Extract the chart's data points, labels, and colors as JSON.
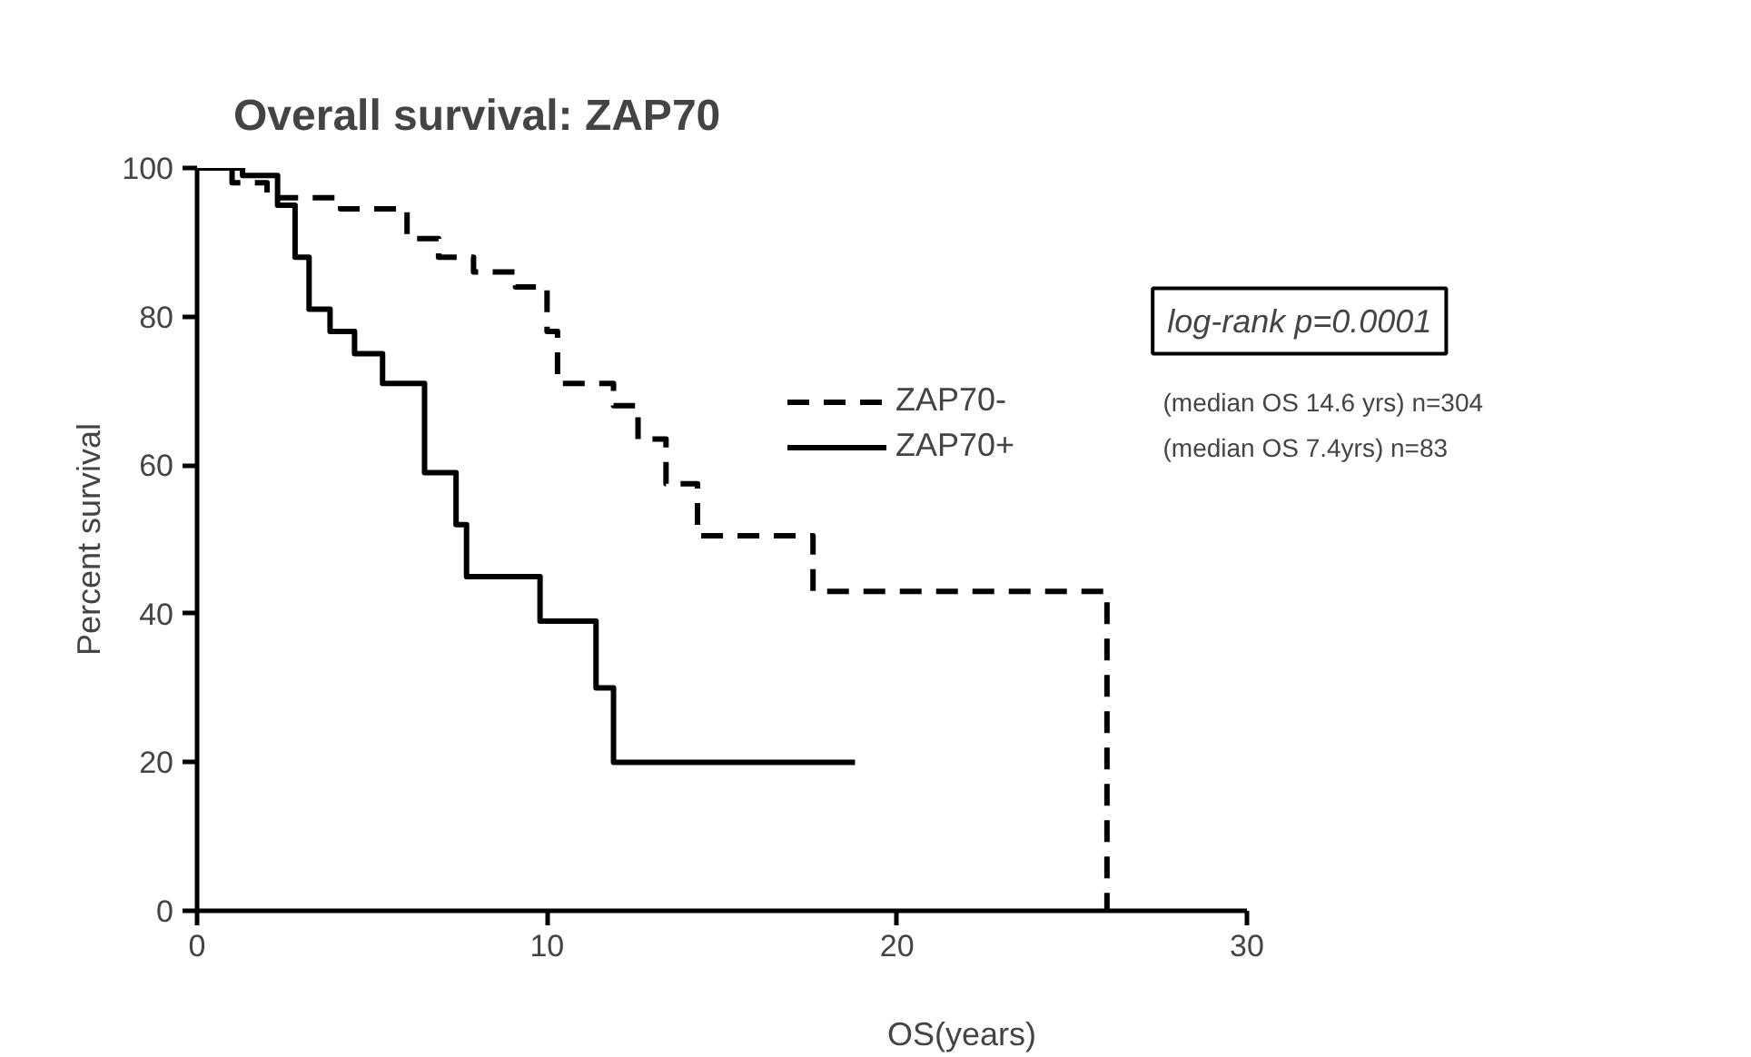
{
  "chart_data": {
    "type": "step",
    "title": "Overall survival: ZAP70",
    "xlabel": "OS(years)",
    "ylabel": "Percent survival",
    "xlim": [
      0,
      30
    ],
    "xticks": [
      0,
      10,
      20,
      30
    ],
    "ylim": [
      0,
      100
    ],
    "yticks": [
      0,
      20,
      40,
      60,
      80,
      100
    ],
    "grid": false,
    "legend": "right",
    "marker": "none",
    "series": [
      {
        "name": "ZAP70-",
        "color": "#000000",
        "line_style": "dashed",
        "x": [
          0,
          1,
          2,
          4.1,
          6,
          6.9,
          7.9,
          9.1,
          10,
          10.3,
          11.9,
          12.6,
          13.4,
          14.3,
          17.6,
          25.9,
          26
        ],
        "values": [
          100,
          98,
          96,
          94.5,
          90.5,
          88,
          86,
          84,
          78,
          71,
          68,
          63.5,
          57.5,
          50.5,
          43,
          43,
          0
        ]
      },
      {
        "name": "ZAP70+",
        "color": "#000000",
        "line_style": "solid",
        "x": [
          0,
          1.3,
          2.3,
          2.8,
          3.2,
          3.8,
          4.5,
          5.3,
          6.5,
          7.4,
          7.7,
          9.8,
          11.4,
          11.9,
          18.8
        ],
        "values": [
          100,
          99,
          95,
          88,
          81,
          78,
          75,
          71,
          59,
          52,
          45,
          39,
          30,
          20,
          20
        ]
      }
    ],
    "annotations": [
      "log-rank p=0.0001",
      "(median OS 14.6 yrs) n=304",
      "(median OS 7.4yrs) n=83"
    ]
  }
}
